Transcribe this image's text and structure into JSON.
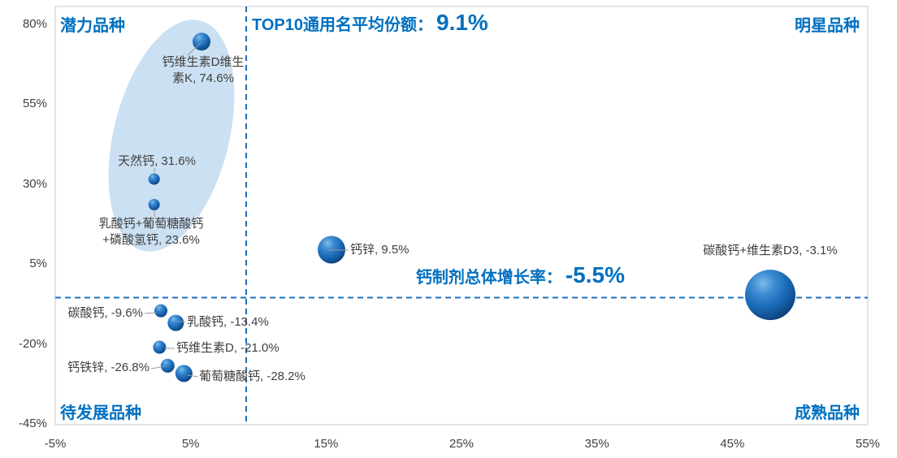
{
  "header": {
    "title_prefix": "TOP10通用名平均份额：",
    "title_value": "9.1%"
  },
  "annotation": {
    "prefix": "钙制剂总体增长率：",
    "value": "-5.5%"
  },
  "quadrants": {
    "top_left": "潜力品种",
    "top_right": "明星品种",
    "bottom_left": "待发展品种",
    "bottom_right": "成熟品种"
  },
  "colors": {
    "accent_blue": "#0070C0",
    "dashed_line": "#1E6FBE",
    "plot_border": "#D9D9D9",
    "ellipse_fill": "#BDD7EE",
    "bubble_light": "#7FBCE9",
    "bubble_mid": "#1D6DBC",
    "bubble_dark": "#0A3A6E",
    "leader_line": "#9A9A9A",
    "label_text": "#3F3F3F"
  },
  "chart_data": {
    "type": "scatter",
    "title": "TOP10通用名平均份额：9.1%",
    "xlabel": "",
    "ylabel": "",
    "xlim": [
      -5,
      55
    ],
    "ylim": [
      -45,
      80
    ],
    "x_ticks": [
      "-5%",
      "5%",
      "15%",
      "25%",
      "35%",
      "45%",
      "55%"
    ],
    "y_ticks": [
      "80%",
      "55%",
      "30%",
      "5%",
      "-20%",
      "-45%"
    ],
    "grid": false,
    "legend": "none",
    "reference_lines": {
      "vertical_x": 9.1,
      "vertical_label": "TOP10通用名平均份额：9.1%",
      "horizontal_y": -5.5,
      "horizontal_label": "钙制剂总体增长率：-5.5%"
    },
    "highlight_ellipse": "潜力品种 cluster",
    "points": [
      {
        "name": "钙维生素D维生素K",
        "share": 5.8,
        "growth": 74.6,
        "size": 11,
        "label_lines": [
          "钙维生素D维生",
          "素K, 74.6%"
        ]
      },
      {
        "name": "天然钙",
        "share": 2.3,
        "growth": 31.6,
        "size": 7,
        "label_lines": [
          "天然钙, 31.6%"
        ]
      },
      {
        "name": "乳酸钙+葡萄糖酸钙+磷酸氢钙",
        "share": 2.3,
        "growth": 23.6,
        "size": 7,
        "label_lines": [
          "乳酸钙+葡萄糖酸钙",
          "+磷酸氢钙, 23.6%"
        ]
      },
      {
        "name": "钙锌",
        "share": 15.4,
        "growth": 9.5,
        "size": 17,
        "label_lines": [
          "钙锌, 9.5%"
        ]
      },
      {
        "name": "碳酸钙+维生素D3",
        "share": 47.8,
        "growth": -3.1,
        "size": 31,
        "label_lines": [
          "碳酸钙+维生素D3, -3.1%"
        ]
      },
      {
        "name": "碳酸钙",
        "share": 2.8,
        "growth": -9.6,
        "size": 8,
        "label_lines": [
          "碳酸钙, -9.6%"
        ]
      },
      {
        "name": "乳酸钙",
        "share": 3.9,
        "growth": -13.4,
        "size": 10,
        "label_lines": [
          "乳酸钙, -13.4%"
        ]
      },
      {
        "name": "钙维生素D",
        "share": 2.7,
        "growth": -21.0,
        "size": 8,
        "label_lines": [
          "钙维生素D, -21.0%"
        ]
      },
      {
        "name": "钙铁锌",
        "share": 3.3,
        "growth": -26.8,
        "size": 8.5,
        "label_lines": [
          "钙铁锌, -26.8%"
        ]
      },
      {
        "name": "葡萄糖酸钙",
        "share": 4.5,
        "growth": -28.2,
        "size": 10.5,
        "label_lines": [
          "葡萄糖酸钙, -28.2%"
        ]
      }
    ]
  }
}
